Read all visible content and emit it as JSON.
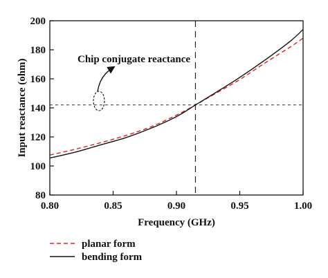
{
  "chart_data": {
    "type": "line",
    "xlabel": "Frequency (GHz)",
    "ylabel": "Input reactance (ohm)",
    "xlim": [
      0.8,
      1.0
    ],
    "ylim": [
      80,
      200
    ],
    "x_ticks": [
      "0.80",
      "0.85",
      "0.90",
      "0.95",
      "1.00"
    ],
    "y_ticks": [
      "80",
      "100",
      "120",
      "140",
      "160",
      "180",
      "200"
    ],
    "grid": false,
    "legend_position": "below-left",
    "annotation": "Chip conjugate reactance",
    "reference_lines": {
      "y": 142,
      "x": 0.915
    },
    "series": [
      {
        "name": "planar form",
        "style": "dashed",
        "color": "#e0201b",
        "x": [
          0.8,
          0.82,
          0.84,
          0.86,
          0.88,
          0.9,
          0.915,
          0.93,
          0.95,
          0.97,
          0.99,
          1.0
        ],
        "y": [
          107.5,
          111.5,
          116,
          121,
          127,
          135,
          142,
          149.5,
          159.5,
          171,
          182,
          188
        ]
      },
      {
        "name": "bending form",
        "style": "solid",
        "color": "#111111",
        "x": [
          0.8,
          0.82,
          0.84,
          0.86,
          0.88,
          0.9,
          0.915,
          0.93,
          0.95,
          0.97,
          0.99,
          1.0
        ],
        "y": [
          105.5,
          109.5,
          114.5,
          119.5,
          126,
          134,
          142,
          150,
          161,
          173,
          186,
          194
        ]
      }
    ]
  }
}
